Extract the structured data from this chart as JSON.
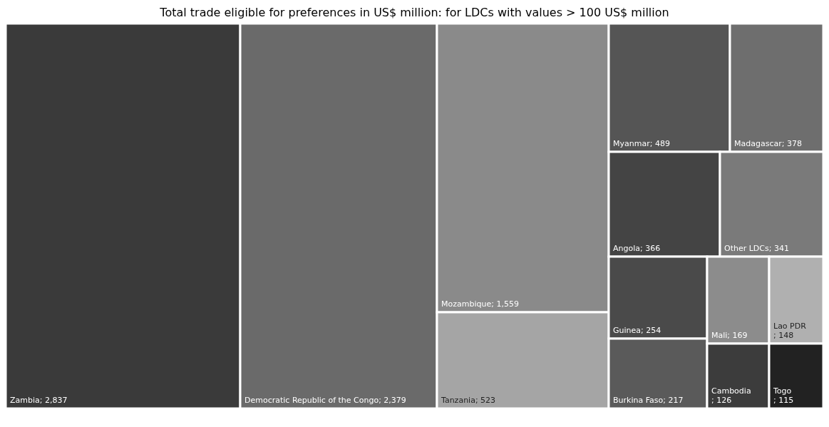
{
  "chart_data": {
    "type": "other",
    "title": "Total trade eligible for preferences in US$ million: for LDCs with values > 100 US$ million",
    "categories": [
      "Zambia",
      "Democratic Republic of the Congo",
      "Mozambique",
      "Tanzania",
      "Myanmar",
      "Madagascar",
      "Angola",
      "Other LDCs",
      "Guinea",
      "Burkina Faso",
      "Mali",
      "Lao PDR",
      "Cambodia",
      "Togo"
    ],
    "values": [
      2837,
      2379,
      1559,
      523,
      489,
      378,
      366,
      341,
      254,
      217,
      169,
      148,
      126,
      115
    ],
    "colors": [
      "#3a3a3a",
      "#6a6a6a",
      "#8a8a8a",
      "#a5a5a5",
      "#555555",
      "#6e6e6e",
      "#444444",
      "#7a7a7a",
      "#4a4a4a",
      "#5a5a5a",
      "#8c8c8c",
      "#b0b0b0",
      "#3c3c3c",
      "#222222"
    ],
    "value_labels": [
      "; 2,837",
      "; 2,379",
      "; 1,559",
      "; 523",
      "; 489",
      "; 378",
      "; 366",
      "; 341",
      "; 254",
      "; 217",
      "; 169",
      "; 148",
      "; 126",
      "; 115"
    ]
  }
}
